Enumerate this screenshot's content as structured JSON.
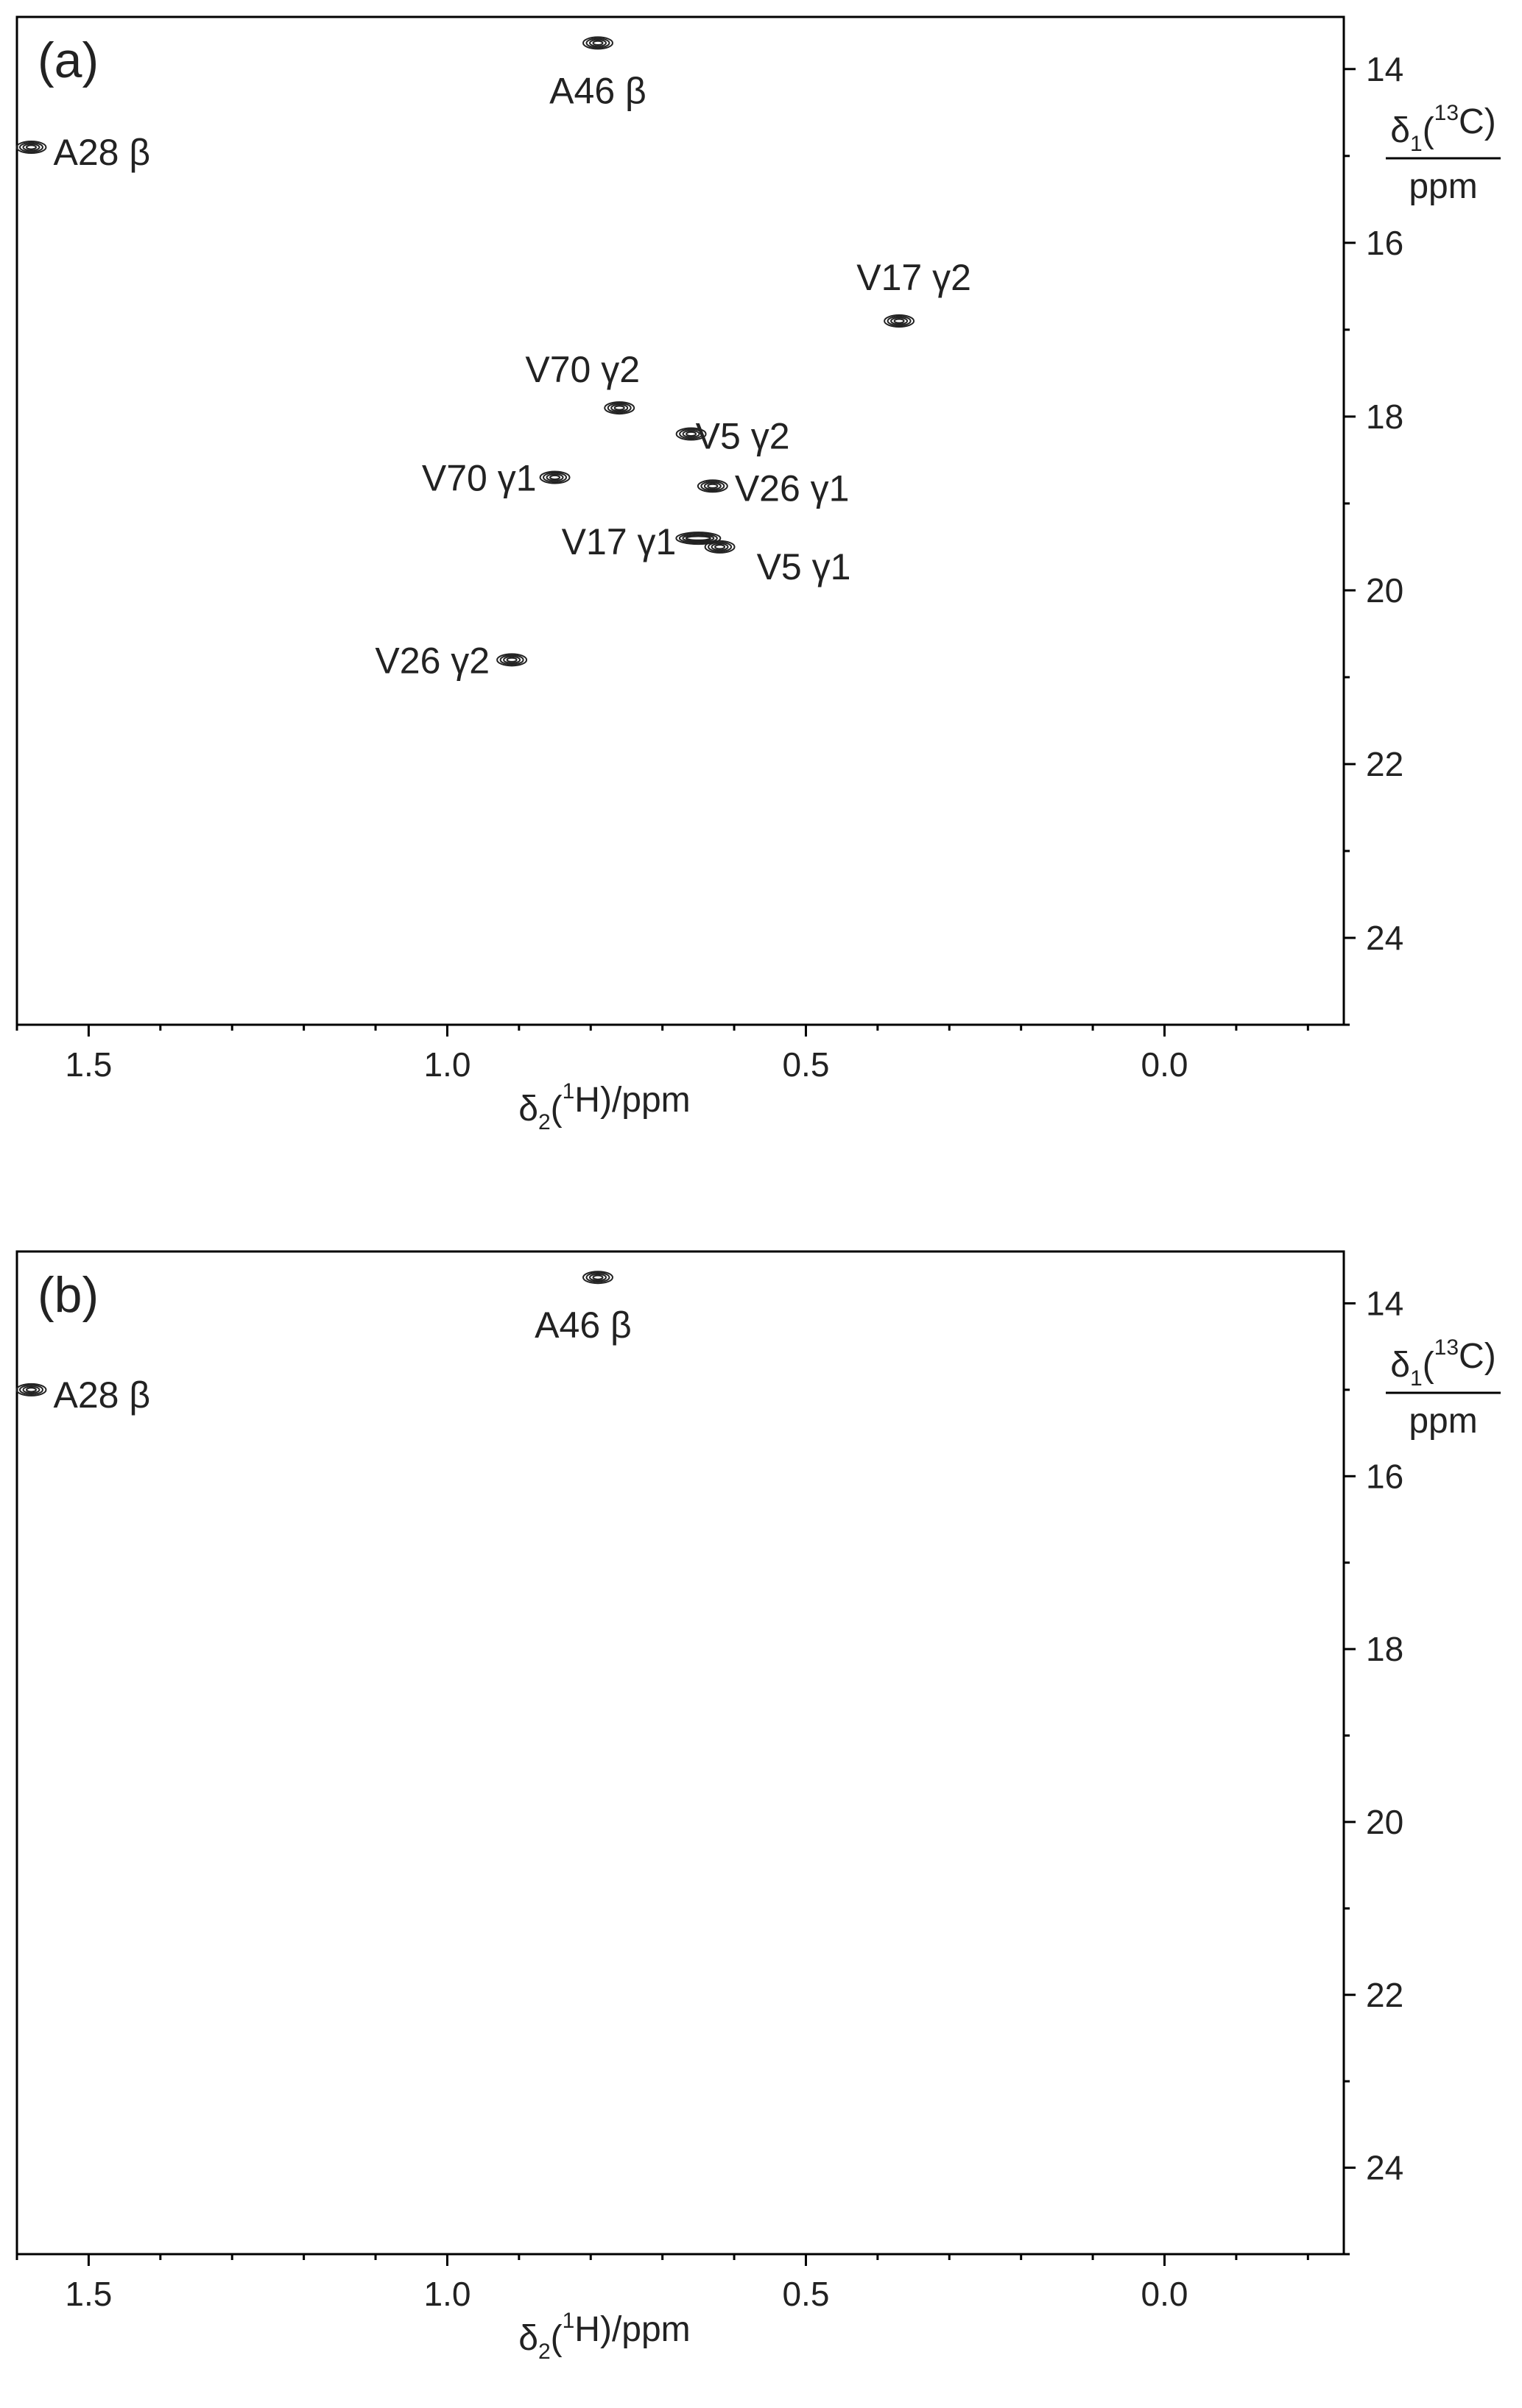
{
  "chart_data": [
    {
      "type": "scatter",
      "panel_label": "(a)",
      "xlabel": {
        "main": "δ",
        "sub": "2",
        "open": "(",
        "sup": "1",
        "rest": "H)/ppm"
      },
      "ylabel": {
        "main": "δ",
        "sub": "1",
        "open": "(",
        "sup": "13",
        "rest": "C)",
        "unit": "ppm"
      },
      "xlim": [
        1.6,
        -0.25
      ],
      "ylim": [
        13.4,
        25.0
      ],
      "x_ticks": [
        1.5,
        1.0,
        0.5,
        0.0
      ],
      "x_tick_labels": [
        "1.5",
        "1.0",
        "0.5",
        "0.0"
      ],
      "y_ticks": [
        14,
        16,
        18,
        20,
        22,
        24
      ],
      "y_tick_labels": [
        "14",
        "16",
        "18",
        "20",
        "22",
        "24"
      ],
      "grid": false,
      "peaks": [
        {
          "label": "A46 β",
          "x": 0.79,
          "y": 13.7
        },
        {
          "label": "A28 β",
          "x": 1.58,
          "y": 14.9
        },
        {
          "label": "V17 γ2",
          "x": 0.37,
          "y": 16.9
        },
        {
          "label": "V70 γ2",
          "x": 0.76,
          "y": 17.9
        },
        {
          "label": "V5 γ2",
          "x": 0.66,
          "y": 18.2
        },
        {
          "label": "V70 γ1",
          "x": 0.85,
          "y": 18.7
        },
        {
          "label": "V26 γ1",
          "x": 0.63,
          "y": 18.8
        },
        {
          "label": "V17 γ1",
          "x": 0.65,
          "y": 19.4
        },
        {
          "label": "V5 γ1",
          "x": 0.62,
          "y": 19.5
        },
        {
          "label": "V26 γ2",
          "x": 0.91,
          "y": 20.8
        }
      ]
    },
    {
      "type": "scatter",
      "panel_label": "(b)",
      "xlabel": {
        "main": "δ",
        "sub": "2",
        "open": "(",
        "sup": "1",
        "rest": "H)/ppm"
      },
      "ylabel": {
        "main": "δ",
        "sub": "1",
        "open": "(",
        "sup": "13",
        "rest": "C)",
        "unit": "ppm"
      },
      "xlim": [
        1.6,
        -0.25
      ],
      "ylim": [
        13.4,
        25.0
      ],
      "x_ticks": [
        1.5,
        1.0,
        0.5,
        0.0
      ],
      "x_tick_labels": [
        "1.5",
        "1.0",
        "0.5",
        "0.0"
      ],
      "y_ticks": [
        14,
        16,
        18,
        20,
        22,
        24
      ],
      "y_tick_labels": [
        "14",
        "16",
        "18",
        "20",
        "22",
        "24"
      ],
      "grid": false,
      "peaks": [
        {
          "label": "A46 β",
          "x": 0.79,
          "y": 13.7
        },
        {
          "label": "A28 β",
          "x": 1.58,
          "y": 15.0
        }
      ]
    }
  ]
}
